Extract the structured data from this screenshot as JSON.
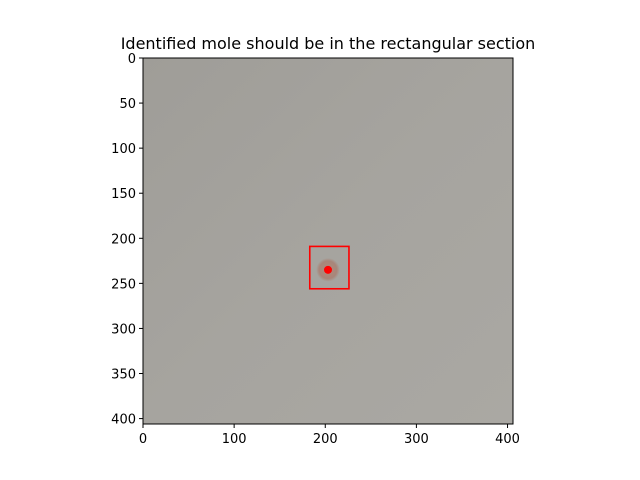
{
  "chart_data": {
    "type": "image",
    "title": "Identified mole should be in the rectangular section",
    "xlabel": "",
    "ylabel": "",
    "xlim": [
      0,
      406
    ],
    "ylim": [
      406,
      0
    ],
    "xticks": [
      0,
      100,
      200,
      300,
      400
    ],
    "yticks": [
      0,
      50,
      100,
      150,
      200,
      250,
      300,
      350,
      400
    ],
    "grid": false,
    "image": {
      "description": "close-up of pale skin with a small brown mole",
      "background_color": "#a3a19c",
      "mole_center": [
        203,
        235
      ],
      "mole_radius": 13,
      "mole_color": "#a8867a"
    },
    "annotations": {
      "rectangle": {
        "x0": 183,
        "y0": 209,
        "x1": 226,
        "y1": 256,
        "color": "#ff0000"
      },
      "center_point": {
        "x": 203,
        "y": 235,
        "color": "#ff0000"
      }
    }
  }
}
